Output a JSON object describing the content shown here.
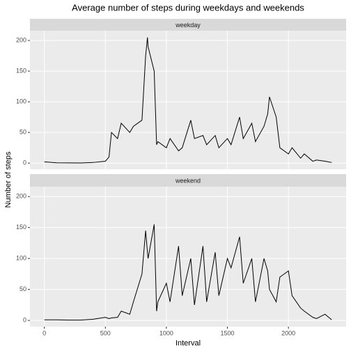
{
  "chart_data": {
    "type": "line",
    "title": "Average number of steps during weekdays and weekends",
    "xlabel": "Interval",
    "ylabel": "Number of steps",
    "xlim": [
      -118,
      2473
    ],
    "ylim": [
      -10,
      216
    ],
    "xticks": [
      0,
      500,
      1000,
      1500,
      2000
    ],
    "yticks": [
      0,
      50,
      100,
      150,
      200
    ],
    "grid": true,
    "color": "#000000",
    "x": [
      0,
      100,
      200,
      300,
      400,
      500,
      530,
      550,
      600,
      630,
      700,
      730,
      800,
      830,
      845,
      850,
      900,
      920,
      930,
      1000,
      1030,
      1100,
      1130,
      1200,
      1230,
      1300,
      1330,
      1400,
      1430,
      1500,
      1530,
      1600,
      1630,
      1700,
      1730,
      1800,
      1830,
      1845,
      1900,
      1930,
      2000,
      2030,
      2100,
      2130,
      2200,
      2230,
      2300,
      2355
    ],
    "facets": [
      {
        "name": "weekday",
        "values": [
          2,
          0.5,
          0.3,
          0.2,
          1,
          3,
          10,
          50,
          40,
          65,
          50,
          60,
          70,
          175,
          205,
          190,
          150,
          30,
          35,
          25,
          40,
          20,
          25,
          70,
          40,
          45,
          30,
          45,
          25,
          40,
          30,
          75,
          40,
          65,
          35,
          60,
          80,
          108,
          75,
          25,
          15,
          25,
          8,
          15,
          3,
          5,
          3,
          1
        ]
      },
      {
        "name": "weekend",
        "values": [
          1,
          1,
          0.5,
          0.5,
          2,
          5,
          3,
          4,
          5,
          15,
          10,
          30,
          75,
          145,
          110,
          100,
          155,
          15,
          30,
          60,
          30,
          120,
          40,
          100,
          25,
          120,
          30,
          110,
          40,
          100,
          85,
          135,
          60,
          100,
          30,
          100,
          80,
          50,
          30,
          70,
          80,
          40,
          20,
          15,
          5,
          3,
          10,
          1
        ]
      }
    ]
  }
}
